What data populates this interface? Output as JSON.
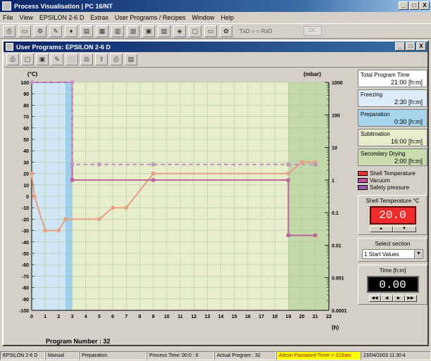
{
  "window": {
    "title": "Process Visualisation | PC 16/NT",
    "buttons": [
      "_",
      "□",
      "X"
    ]
  },
  "menu": [
    "File",
    "View",
    "EPSILON 2-6 D",
    "Extras",
    "User Programs / Recipes",
    "Window",
    "Help"
  ],
  "toolbar": {
    "icons": [
      "print-icon",
      "page-icon",
      "config-icon",
      "tools-icon",
      "lamp-icon",
      "chart-icon",
      "table-icon",
      "grid-icon",
      "chart-edit-icon",
      "monitor-icon",
      "docs-icon",
      "network-icon",
      "display-icon",
      "window-icon",
      "gear-icon"
    ],
    "status": "TxD ○ ○ RxD",
    "grey_btn": "OC"
  },
  "child": {
    "title": "User Programs: EPSILON 2-6 D",
    "buttons": [
      "_",
      "□",
      "X"
    ],
    "toolbar_icons": [
      "print-icon",
      "new-icon",
      "save-icon",
      "edit-icon",
      "disabled-icon",
      "scale-icon",
      "export-icon",
      "print-small-icon",
      "report-icon"
    ]
  },
  "chart": {
    "y_left_unit": "(°C)",
    "y_right_unit": "(mbar)",
    "x_unit": "(h)",
    "y_left_ticks": [
      "100",
      "90",
      "80",
      "70",
      "60",
      "50",
      "40",
      "30",
      "20",
      "10",
      "0",
      "-10",
      "-20",
      "-30",
      "-40",
      "-50",
      "-60",
      "-70",
      "-80",
      "-90",
      "-100"
    ],
    "x_ticks": [
      "0",
      "1",
      "2",
      "3",
      "4",
      "5",
      "6",
      "7",
      "8",
      "9",
      "10",
      "11",
      "12",
      "13",
      "14",
      "15",
      "16",
      "17",
      "18",
      "19",
      "20",
      "21",
      "22"
    ],
    "y_right_ticks": [
      "1000",
      "100",
      "10",
      "1",
      "0.1",
      "0.01",
      "0.001",
      "0.0001"
    ]
  },
  "chart_data": {
    "type": "line",
    "xlabel": "(h)",
    "ylabel": "(°C)",
    "y2label": "(mbar)",
    "xlim": [
      0,
      22
    ],
    "ylim": [
      -100,
      100
    ],
    "y2lim": [
      0.0001,
      1000
    ],
    "y2scale": "log",
    "grid": true,
    "sections": [
      {
        "x": [
          0,
          2.5
        ],
        "color": "#cfe6f4"
      },
      {
        "x": [
          2.5,
          3
        ],
        "color": "#9cd0ee"
      },
      {
        "x": [
          3,
          19
        ],
        "color": "#e6eecc"
      },
      {
        "x": [
          19,
          22
        ],
        "color": "#c2d8a8"
      }
    ],
    "series": [
      {
        "name": "Shell Temperature",
        "axis": "left",
        "color": "#e8a080",
        "x": [
          0,
          0.2,
          1,
          2,
          2.5,
          5,
          6,
          7,
          9,
          19,
          20,
          21
        ],
        "y": [
          20,
          0,
          -30,
          -30,
          -20,
          -20,
          -10,
          -10,
          20,
          20,
          30,
          30
        ]
      },
      {
        "name": "Vacuum",
        "axis": "right",
        "color": "#c060a0",
        "x": [
          0,
          3,
          3,
          9,
          19,
          19,
          21
        ],
        "y": [
          1000,
          1000,
          1,
          1,
          1,
          0.02,
          0.02
        ]
      },
      {
        "name": "Safety pressure",
        "axis": "right",
        "color": "#c090c0",
        "dashed": true,
        "x": [
          0,
          3,
          3,
          5,
          9,
          19,
          21
        ],
        "y": [
          1000,
          1000,
          3,
          3,
          3,
          3,
          3
        ]
      }
    ]
  },
  "panel": {
    "boxes": [
      {
        "label": "Total Program Time",
        "value": "21:00  [h:m]",
        "color": "#ffffff"
      },
      {
        "label": "Freezing",
        "value": "2:30  [h:m]",
        "color": "#dcecf8"
      },
      {
        "label": "Preparation",
        "value": "0:30  [h:m]",
        "color": "#a8d4ee"
      },
      {
        "label": "Sublimation",
        "value": "16:00  [h:m]",
        "color": "#e6eecc"
      },
      {
        "label": "Secondary Drying",
        "value": "2:00  [h:m]",
        "color": "#c8dcae"
      }
    ],
    "legend": [
      {
        "label": "Shell Temperature",
        "color": "#ee3030"
      },
      {
        "label": "Vacuum",
        "color": "#c050a0"
      },
      {
        "label": "Safety pressure",
        "color": "#9a58a8"
      }
    ],
    "shell_label": "Shell Temperature  °C",
    "shell_value": "20.0",
    "spin": [
      "▲",
      "▼"
    ],
    "select_label": "Select section",
    "select_value": "1 Start Values",
    "time_label": "Time [h:m]",
    "time_value": "0.00",
    "nav": [
      "◀◀",
      "◀",
      "▶",
      "▶▶"
    ]
  },
  "program_number": "Program Number : 32",
  "status": {
    "cells": [
      "EPSILON 2-6 D",
      "Manual",
      "Preparation",
      "Process Time: 00:0 : 6",
      "Actual Program : 32",
      "Admin  Password-Timer = 223sec",
      "23/04/2003  11:30:4"
    ]
  }
}
